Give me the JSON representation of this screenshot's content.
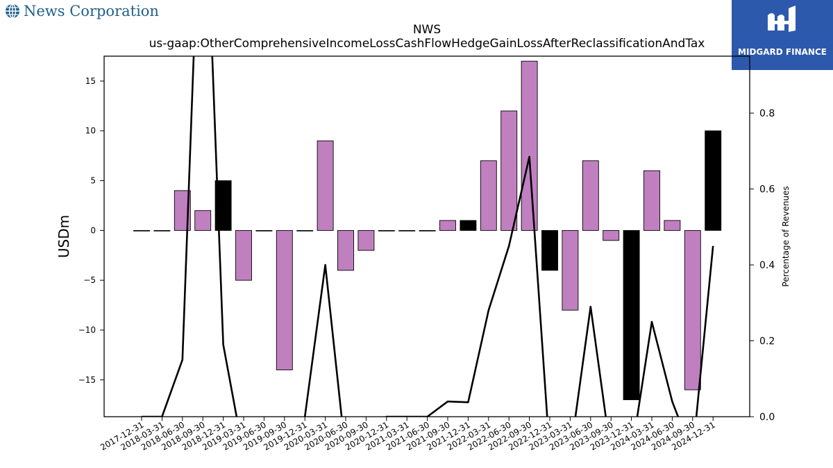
{
  "header": {
    "company_name": "News Corporation",
    "company_icon": "globe-icon",
    "badge_name": "MIDGARD FINANCE",
    "badge_icon": "midgard-logo-icon",
    "badge_color": "#2d59ad",
    "company_color": "#1f5f8b"
  },
  "chart_data": {
    "type": "bar",
    "title": "NWS",
    "subtitle": "us-gaap:OtherComprehensiveIncomeLossCashFlowHedgeGainLossAfterReclassificationAndTax",
    "ylabel": "USDm",
    "y2label": "Percentage of Revenues",
    "ylim": [
      -18.7,
      17.5
    ],
    "y2lim": [
      0.0,
      0.95
    ],
    "yticks": [
      -15,
      -10,
      -5,
      0,
      5,
      10,
      15
    ],
    "y2ticks": [
      0.0,
      0.2,
      0.4,
      0.6,
      0.8
    ],
    "grid": false,
    "categories": [
      "2017-12-31",
      "2018-03-31",
      "2018-06-30",
      "2018-09-30",
      "2018-12-31",
      "2019-03-31",
      "2019-06-30",
      "2019-09-30",
      "2019-12-31",
      "2020-03-31",
      "2020-06-30",
      "2020-09-30",
      "2020-12-31",
      "2021-03-31",
      "2021-06-30",
      "2021-09-30",
      "2021-12-31",
      "2022-03-31",
      "2022-06-30",
      "2022-09-30",
      "2022-12-31",
      "2023-03-31",
      "2023-06-30",
      "2023-09-30",
      "2023-12-31",
      "2024-03-31",
      "2024-06-30",
      "2024-09-30",
      "2024-12-31"
    ],
    "values": [
      0,
      0,
      4,
      2,
      5,
      -5,
      0,
      -14,
      0,
      9,
      -4,
      -2,
      0,
      0,
      0,
      1,
      1,
      7,
      12,
      17,
      -4,
      -8,
      7,
      -1,
      -17,
      6,
      1,
      -16,
      10
    ],
    "bar_colors": [
      "#c080c0",
      "#c080c0",
      "#c080c0",
      "#c080c0",
      "#000000",
      "#c080c0",
      "#c080c0",
      "#c080c0",
      "#c080c0",
      "#c080c0",
      "#c080c0",
      "#c080c0",
      "#c080c0",
      "#c080c0",
      "#c080c0",
      "#c080c0",
      "#000000",
      "#c080c0",
      "#c080c0",
      "#c080c0",
      "#000000",
      "#c080c0",
      "#c080c0",
      "#c080c0",
      "#000000",
      "#c080c0",
      "#c080c0",
      "#c080c0",
      "#000000"
    ],
    "line_color": "#000000",
    "line_values": [
      0.0,
      0.0,
      0.15,
      1.6,
      0.19,
      -0.1,
      -0.1,
      -0.1,
      0.0,
      0.4,
      -0.1,
      -0.1,
      0.0,
      0.0,
      0.0,
      0.04,
      0.038,
      0.28,
      0.45,
      0.685,
      -0.1,
      -0.1,
      0.29,
      -0.1,
      -0.1,
      0.25,
      0.04,
      -0.1,
      0.45
    ]
  }
}
